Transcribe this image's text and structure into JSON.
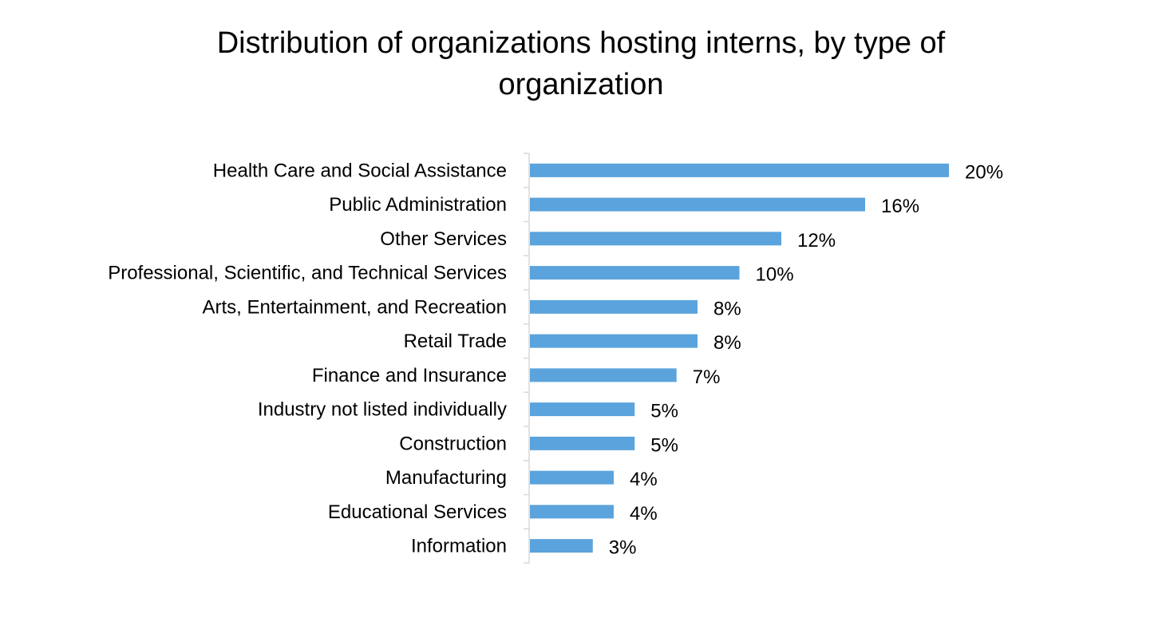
{
  "chart_data": {
    "type": "bar",
    "orientation": "horizontal",
    "title": "Distribution of organizations hosting interns, by type of organization",
    "categories": [
      "Health Care and Social Assistance",
      "Public Administration",
      "Other Services",
      "Professional, Scientific, and Technical Services",
      "Arts, Entertainment, and Recreation",
      "Retail Trade",
      "Finance and Insurance",
      "Industry not listed individually",
      "Construction",
      "Manufacturing",
      "Educational Services",
      "Information"
    ],
    "values": [
      20,
      16,
      12,
      10,
      8,
      8,
      7,
      5,
      5,
      4,
      4,
      3
    ],
    "data_labels": [
      "20%",
      "16%",
      "12%",
      "10%",
      "8%",
      "8%",
      "7%",
      "5%",
      "5%",
      "4%",
      "4%",
      "3%"
    ],
    "value_unit": "%",
    "xlim": [
      0,
      20
    ],
    "grid": false,
    "legend": "none",
    "bar_color": "#5ba3dc",
    "axis_color": "#d9d9d9"
  }
}
